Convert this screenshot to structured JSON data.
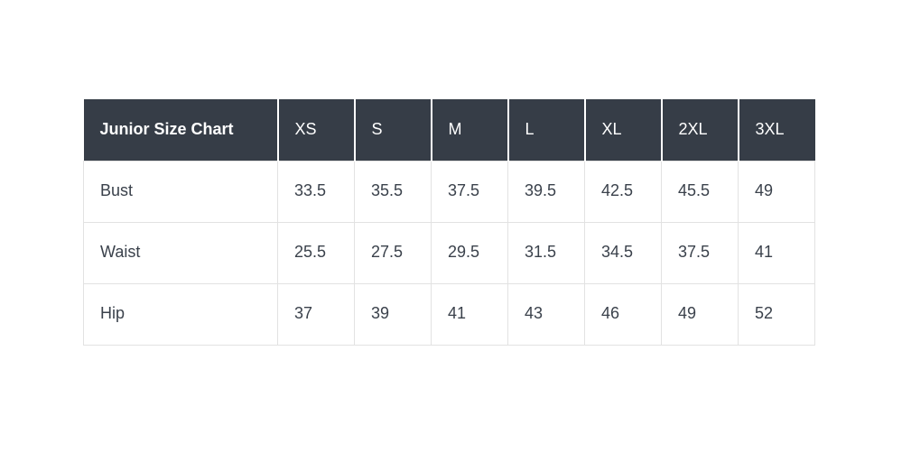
{
  "chart_data": {
    "type": "table",
    "title": "Junior Size Chart",
    "columns": [
      "XS",
      "S",
      "M",
      "L",
      "XL",
      "2XL",
      "3XL"
    ],
    "rows": [
      {
        "label": "Bust",
        "values": [
          "33.5",
          "35.5",
          "37.5",
          "39.5",
          "42.5",
          "45.5",
          "49"
        ]
      },
      {
        "label": "Waist",
        "values": [
          "25.5",
          "27.5",
          "29.5",
          "31.5",
          "34.5",
          "37.5",
          "41"
        ]
      },
      {
        "label": "Hip",
        "values": [
          "37",
          "39",
          "41",
          "43",
          "46",
          "49",
          "52"
        ]
      }
    ]
  },
  "colors": {
    "header_bg": "#363d47",
    "header_text": "#ffffff",
    "body_text": "#3a414b",
    "border": "#e2e2e2"
  }
}
